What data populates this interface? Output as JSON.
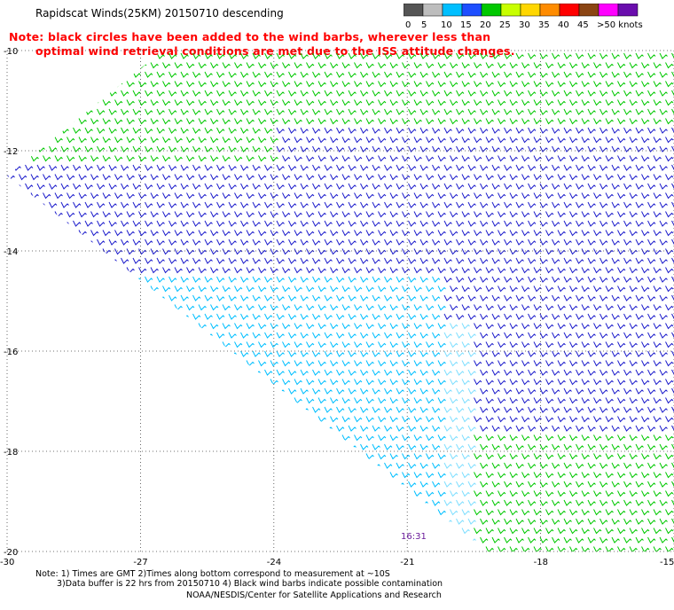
{
  "title": "Rapidscat Winds(25KM) 20150710 descending",
  "note": {
    "line1": "Note: black circles have been added to the wind barbs, wherever less than",
    "line2": "optimal wind retrieval conditions are met due to the ISS attitude changes."
  },
  "colorbar": {
    "segments": [
      {
        "label": "0",
        "color": "#555555"
      },
      {
        "label": "5",
        "color": "#bdbdbd"
      },
      {
        "label": "10",
        "color": "#00bfff"
      },
      {
        "label": "15",
        "color": "#1e4fff"
      },
      {
        "label": "20",
        "color": "#00c800"
      },
      {
        "label": "25",
        "color": "#c8ff00"
      },
      {
        "label": "30",
        "color": "#ffd700"
      },
      {
        "label": "35",
        "color": "#ff8c00"
      },
      {
        "label": "40",
        "color": "#ff0000"
      },
      {
        "label": "45",
        "color": "#8b4513"
      },
      {
        "label": ">50 knots",
        "color": "#ff00ff"
      },
      {
        "label": "",
        "color": "#6a0dad"
      }
    ]
  },
  "map": {
    "lat_range": [
      -20,
      -10
    ],
    "lon_range": [
      -30,
      -15
    ],
    "lat_ticks": [
      "-10",
      "-12",
      "-14",
      "-16",
      "-18",
      "-20"
    ],
    "lon_ticks": [
      "-30",
      "-27",
      "-24",
      "-21",
      "-18",
      "-15"
    ],
    "swath_colors": {
      "north": "#00c800",
      "core": "#1e1ecc",
      "south": "#00bfff",
      "edge": "#7fdfff"
    }
  },
  "time_label": "16:31",
  "footnotes": {
    "line1": "Note: 1) Times are GMT 2)Times along bottom correspond to measurement at ~10S",
    "line2": "3)Data buffer is 22 hrs from 20150710 4) Black wind barbs indicate possible contamination",
    "line3": "NOAA/NESDIS/Center for Satellite Applications and Research"
  }
}
